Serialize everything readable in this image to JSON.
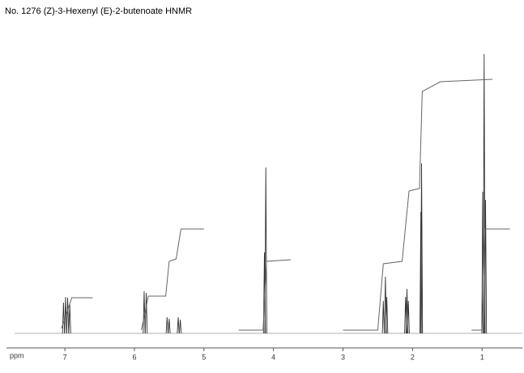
{
  "chart_data": {
    "type": "spectrum",
    "title": "No. 1276 (Z)-3-Hexenyl (E)-2-butenoate HNMR",
    "xlabel": "ppm",
    "xlim": [
      7.84,
      0.42
    ],
    "xticks": [
      7,
      6,
      5,
      4,
      3,
      2,
      1
    ],
    "ylim": [
      0,
      360
    ],
    "color": "#333333",
    "peaks": {
      "x": [
        7.02,
        6.99,
        6.96,
        6.93,
        5.86,
        5.83,
        5.53,
        5.5,
        5.37,
        5.34,
        4.13,
        4.11,
        2.42,
        2.39,
        2.37,
        2.1,
        2.08,
        2.06,
        1.88,
        1.87,
        0.99,
        0.97,
        0.95
      ],
      "values": [
        38,
        45,
        44,
        36,
        52,
        50,
        20,
        18,
        20,
        17,
        100,
        205,
        40,
        70,
        45,
        45,
        55,
        40,
        150,
        210,
        175,
        345,
        165
      ]
    },
    "integral": {
      "x": [
        7.05,
        6.9,
        6.6,
        null,
        5.9,
        5.8,
        5.55,
        5.5,
        5.4,
        5.33,
        5.0,
        null,
        4.5,
        4.15,
        4.1,
        3.75,
        null,
        3.0,
        2.5,
        2.42,
        2.15,
        2.05,
        1.9,
        1.86,
        1.6,
        0.85,
        null,
        1.15,
        1.0,
        0.96,
        0.6
      ],
      "values": [
        2,
        40,
        40,
        null,
        0,
        42,
        42,
        85,
        88,
        125,
        125,
        null,
        0,
        0,
        85,
        87,
        null,
        0,
        0,
        82,
        85,
        172,
        175,
        295,
        307,
        310,
        null,
        0,
        0,
        125,
        125
      ]
    }
  }
}
